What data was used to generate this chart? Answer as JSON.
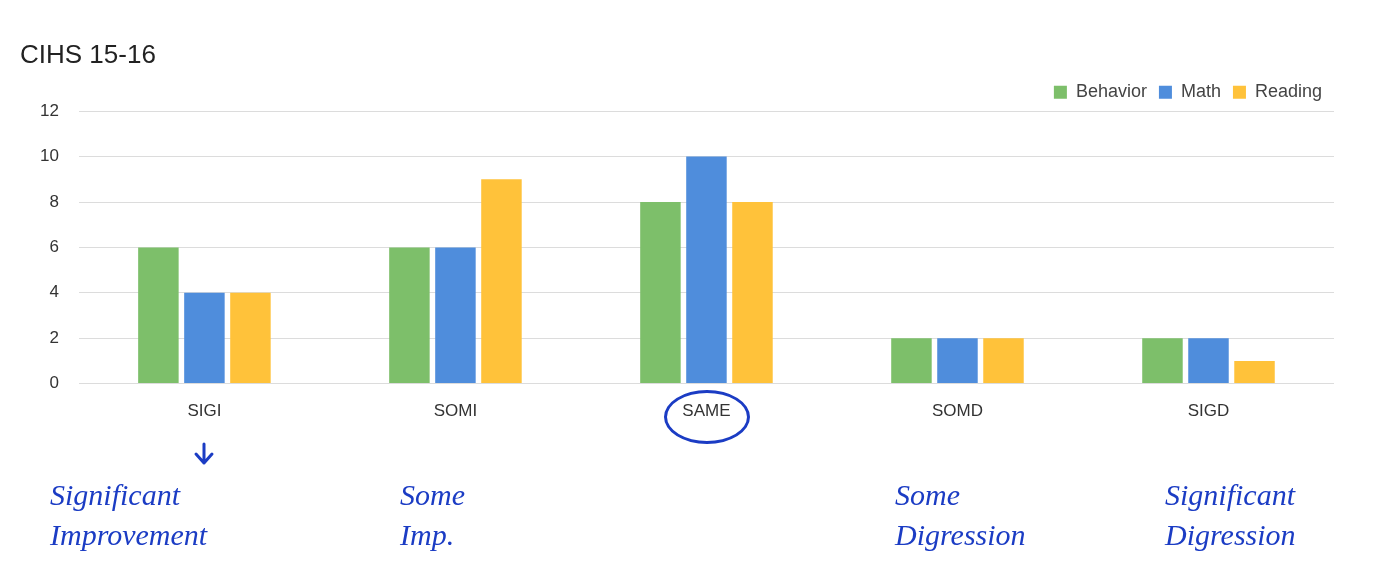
{
  "chart_data": {
    "type": "bar",
    "title": "CIHS 15-16",
    "categories": [
      "SIGI",
      "SOMI",
      "SAME",
      "SOMD",
      "SIGD"
    ],
    "series": [
      {
        "name": "Behavior",
        "color": "#7dbf6a",
        "values": [
          6,
          6,
          8,
          2,
          2
        ]
      },
      {
        "name": "Math",
        "color": "#4f8ddc",
        "values": [
          4,
          6,
          10,
          2,
          2
        ]
      },
      {
        "name": "Reading",
        "color": "#ffc23a",
        "values": [
          4,
          9,
          8,
          2,
          1
        ]
      }
    ],
    "ylim": [
      0,
      12
    ],
    "yticks": [
      0,
      2,
      4,
      6,
      8,
      10,
      12
    ],
    "grid": "y",
    "legend": "top right",
    "annotations": [
      "Significant Improvement",
      "Some Imp.",
      "Some Digression",
      "Significant Digression"
    ]
  }
}
